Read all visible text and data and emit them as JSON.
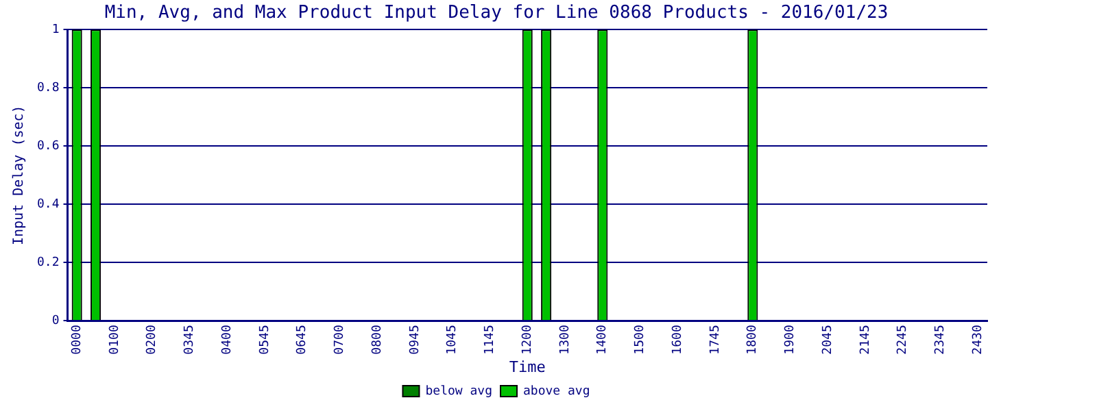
{
  "chart_data": {
    "type": "bar",
    "title": "Min, Avg, and Max Product Input Delay for Line 0868 Products - 2016/01/23",
    "xlabel": "Time",
    "ylabel": "Input Delay (sec)",
    "categories": [
      "0000",
      null,
      "0100",
      null,
      "0200",
      null,
      "0345",
      null,
      "0400",
      null,
      "0545",
      null,
      "0645",
      null,
      "0700",
      null,
      "0800",
      null,
      "0945",
      null,
      "1045",
      null,
      "1145",
      null,
      "1200",
      null,
      "1300",
      null,
      "1400",
      null,
      "1500",
      null,
      "1600",
      null,
      "1745",
      null,
      "1800",
      null,
      "1900",
      null,
      "2045",
      null,
      "2145",
      null,
      "2245",
      null,
      "2345",
      null,
      "2430"
    ],
    "series": [
      {
        "name": "below avg",
        "color": "#008000",
        "values": [
          null,
          null,
          null,
          null,
          null,
          null,
          null,
          null,
          null,
          null,
          null,
          null,
          null,
          null,
          null,
          null,
          null,
          null,
          null,
          null,
          null,
          null,
          null,
          null,
          null,
          null,
          null,
          null,
          null,
          null,
          null,
          null,
          null,
          null,
          null,
          null,
          null,
          null,
          null,
          null,
          null,
          null,
          null,
          null,
          null,
          null,
          null,
          null,
          null
        ]
      },
      {
        "name": "above avg",
        "color": "#00c000",
        "values": [
          1,
          1,
          0,
          0,
          0,
          0,
          0,
          0,
          0,
          0,
          0,
          0,
          0,
          0,
          0,
          0,
          0,
          0,
          0,
          0,
          0,
          0,
          0,
          0,
          1,
          1,
          0,
          0,
          1,
          0,
          0,
          0,
          0,
          0,
          0,
          0,
          1,
          0,
          0,
          0,
          0,
          0,
          0,
          0,
          0,
          0,
          0,
          0,
          0
        ]
      }
    ],
    "ylim": [
      0,
      1
    ],
    "yticks": [
      0,
      0.2,
      0.4,
      0.6,
      0.8,
      1
    ],
    "grid": "y",
    "legend": "bottom"
  }
}
